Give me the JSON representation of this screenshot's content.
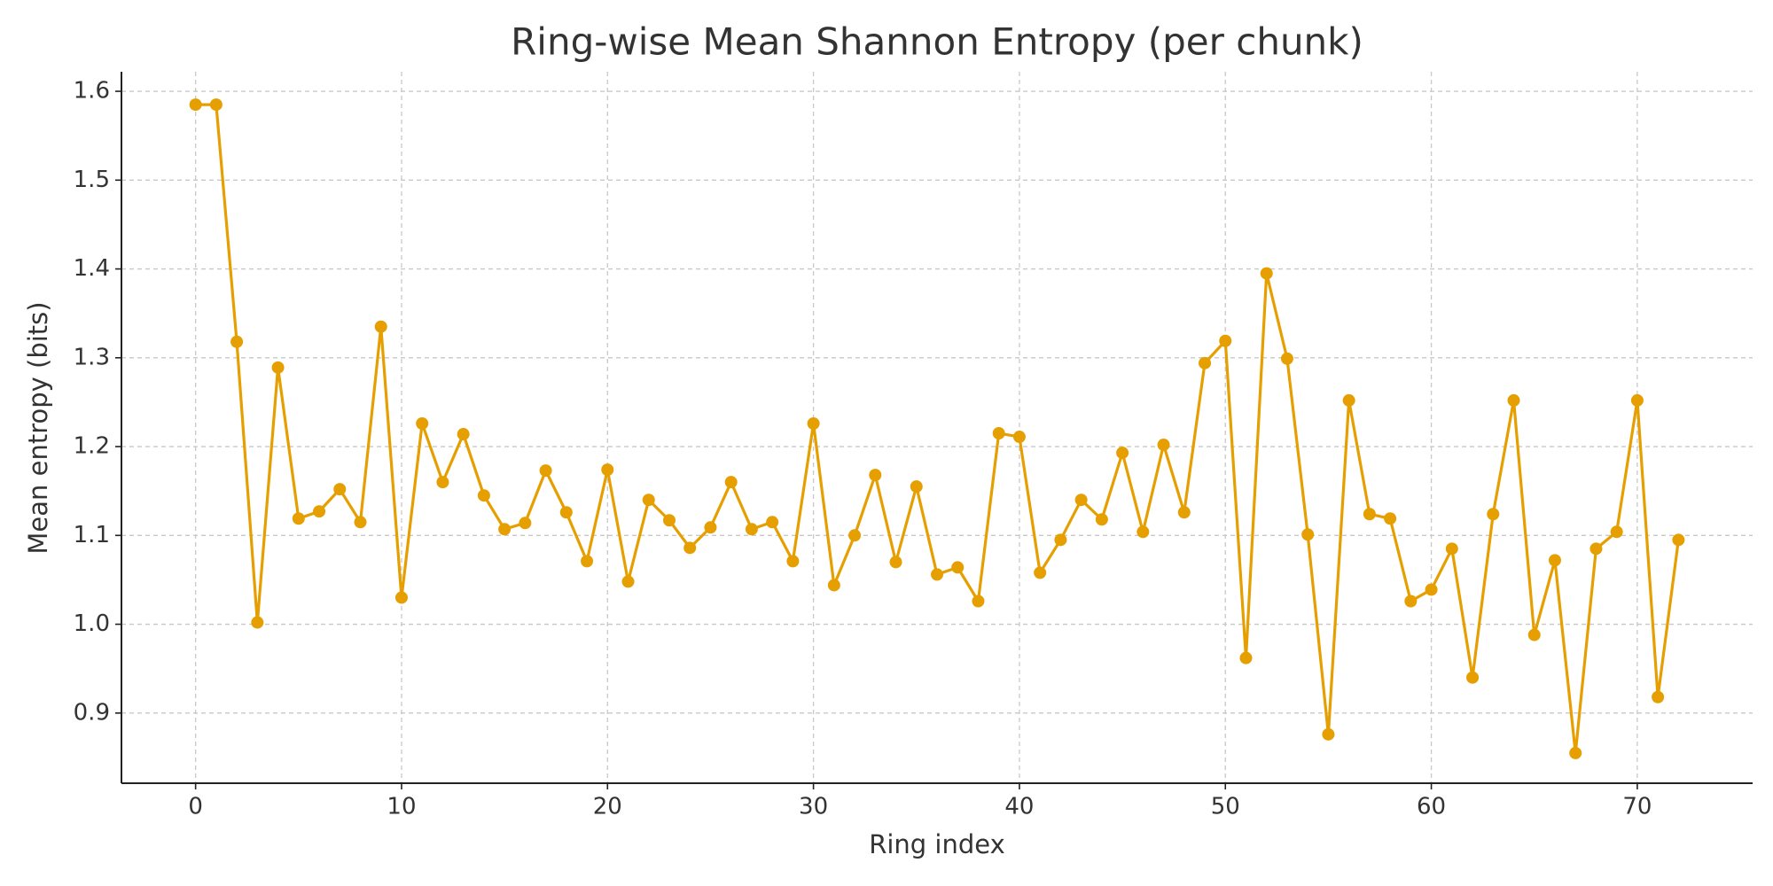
{
  "chart_data": {
    "type": "line",
    "title": "Ring-wise Mean Shannon Entropy (per chunk)",
    "x_label": "Ring index",
    "y_label": "Mean entropy (bits)",
    "x": [
      0,
      1,
      2,
      3,
      4,
      5,
      6,
      7,
      8,
      9,
      10,
      11,
      12,
      13,
      14,
      15,
      16,
      17,
      18,
      19,
      20,
      21,
      22,
      23,
      24,
      25,
      26,
      27,
      28,
      29,
      30,
      31,
      32,
      33,
      34,
      35,
      36,
      37,
      38,
      39,
      40,
      41,
      42,
      43,
      44,
      45,
      46,
      47,
      48,
      49,
      50,
      51,
      52,
      53,
      54,
      55,
      56,
      57,
      58,
      59,
      60,
      61,
      62,
      63,
      64,
      65,
      66,
      67,
      68,
      69,
      70,
      71,
      72
    ],
    "series": [
      {
        "name": "Mean entropy",
        "color": "#e69f00",
        "values": [
          1.585,
          1.585,
          1.318,
          1.002,
          1.289,
          1.119,
          1.127,
          1.152,
          1.115,
          1.335,
          1.03,
          1.226,
          1.16,
          1.214,
          1.145,
          1.107,
          1.114,
          1.173,
          1.126,
          1.071,
          1.174,
          1.048,
          1.14,
          1.117,
          1.086,
          1.109,
          1.16,
          1.107,
          1.115,
          1.071,
          1.226,
          1.044,
          1.1,
          1.168,
          1.07,
          1.155,
          1.056,
          1.064,
          1.026,
          1.215,
          1.211,
          1.058,
          1.095,
          1.14,
          1.118,
          1.193,
          1.104,
          1.202,
          1.126,
          1.294,
          1.319,
          0.962,
          1.395,
          1.299,
          1.101,
          0.876,
          1.252,
          1.124,
          1.119,
          1.026,
          1.039,
          1.085,
          0.94,
          1.124,
          1.252,
          0.988,
          1.072,
          0.855,
          1.085,
          1.104,
          1.252,
          0.918,
          1.095
        ]
      }
    ],
    "xlim": [
      -3.6,
      75.6
    ],
    "ylim": [
      0.821,
      1.622
    ],
    "xticks": [
      0,
      10,
      20,
      30,
      40,
      50,
      60,
      70
    ],
    "yticks": [
      0.9,
      {
        "value": 1,
        "label": "1.0"
      },
      1.1,
      1.2,
      1.3,
      1.4,
      1.5,
      1.6
    ],
    "grid": true
  }
}
